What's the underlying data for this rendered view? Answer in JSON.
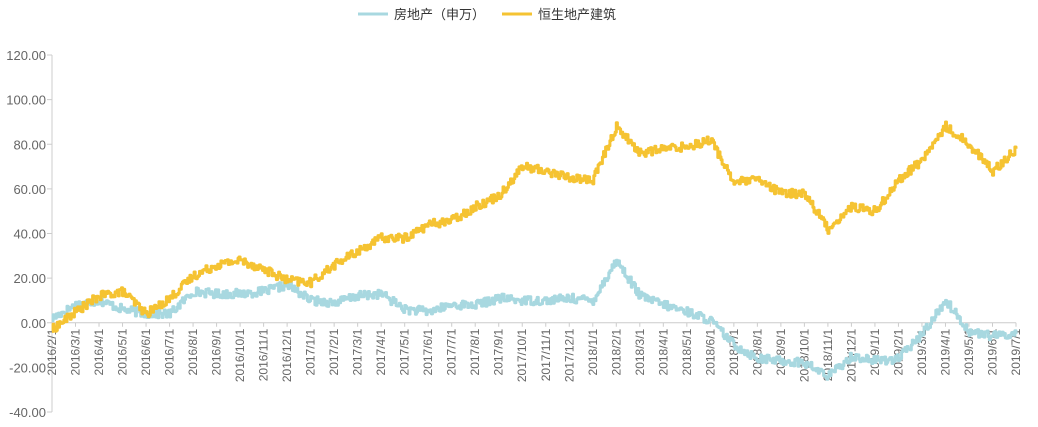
{
  "chart_data": {
    "type": "line",
    "title": "",
    "xlabel": "",
    "ylabel": "",
    "ylim": [
      -40,
      120
    ],
    "yticks": [
      "120.00",
      "100.00",
      "80.00",
      "60.00",
      "40.00",
      "20.00",
      "0.00",
      "-20.00",
      "-40.00"
    ],
    "yticks_values": [
      120,
      100,
      80,
      60,
      40,
      20,
      0,
      -20,
      -40
    ],
    "grid": false,
    "legend_position": "top-center",
    "x_tick_labels": [
      "2016/2/1",
      "2016/3/1",
      "2016/4/1",
      "2016/5/1",
      "2016/6/1",
      "2016/7/1",
      "2016/8/1",
      "2016/9/1",
      "2016/10/1",
      "2016/11/1",
      "2016/12/1",
      "2017/1/1",
      "2017/2/1",
      "2017/3/1",
      "2017/4/1",
      "2017/5/1",
      "2017/6/1",
      "2017/7/1",
      "2017/8/1",
      "2017/9/1",
      "2017/10/1",
      "2017/11/1",
      "2017/12/1",
      "2018/1/1",
      "2018/2/1",
      "2018/3/1",
      "2018/4/1",
      "2018/5/1",
      "2018/6/1",
      "2018/7/1",
      "2018/8/1",
      "2018/9/1",
      "2018/10/1",
      "2018/11/1",
      "2018/12/1",
      "2019/1/1",
      "2019/2/1",
      "2019/3/1",
      "2019/4/1",
      "2019/5/1",
      "2019/6/1",
      "2019/7/1"
    ],
    "x": [
      "2016/2/1",
      "2016/3/1",
      "2016/4/1",
      "2016/5/1",
      "2016/6/1",
      "2016/7/1",
      "2016/8/1",
      "2016/9/1",
      "2016/10/1",
      "2016/11/1",
      "2016/12/1",
      "2017/1/1",
      "2017/2/1",
      "2017/3/1",
      "2017/4/1",
      "2017/5/1",
      "2017/6/1",
      "2017/7/1",
      "2017/8/1",
      "2017/9/1",
      "2017/10/1",
      "2017/11/1",
      "2017/12/1",
      "2018/1/1",
      "2018/2/1",
      "2018/3/1",
      "2018/4/1",
      "2018/5/1",
      "2018/6/1",
      "2018/7/1",
      "2018/8/1",
      "2018/9/1",
      "2018/10/1",
      "2018/11/1",
      "2018/12/1",
      "2019/1/1",
      "2019/2/1",
      "2019/3/1",
      "2019/4/1",
      "2019/5/1",
      "2019/6/1",
      "2019/7/1"
    ],
    "series": [
      {
        "name": "房地产（申万）",
        "color": "#a8d8e0",
        "values": [
          2,
          8,
          10,
          6,
          4,
          4,
          14,
          13,
          13,
          14,
          17,
          10,
          9,
          12,
          13,
          6,
          5,
          8,
          8,
          11,
          10,
          10,
          11,
          10,
          28,
          12,
          8,
          5,
          1,
          -10,
          -16,
          -17,
          -18,
          -24,
          -15,
          -17,
          -16,
          -5,
          10,
          -4,
          -6,
          -5
        ]
      },
      {
        "name": "恒生地产建筑",
        "color": "#f5c332",
        "values": [
          -3,
          5,
          12,
          14,
          4,
          11,
          21,
          26,
          28,
          24,
          19,
          18,
          26,
          32,
          38,
          38,
          44,
          46,
          52,
          57,
          70,
          68,
          65,
          64,
          88,
          76,
          78,
          79,
          82,
          63,
          64,
          58,
          58,
          42,
          52,
          50,
          64,
          73,
          88,
          80,
          68,
          78
        ]
      }
    ]
  }
}
